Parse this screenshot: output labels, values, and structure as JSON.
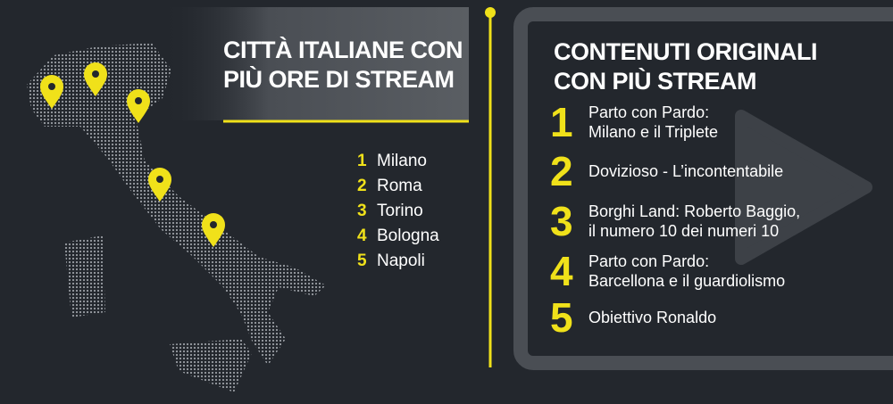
{
  "left": {
    "title_lines": [
      "CITTÀ ITALIANE CON",
      "PIÙ ORE DI STREAM"
    ],
    "items": [
      {
        "rank": 1,
        "name": "Milano"
      },
      {
        "rank": 2,
        "name": "Roma"
      },
      {
        "rank": 3,
        "name": "Torino"
      },
      {
        "rank": 4,
        "name": "Bologna"
      },
      {
        "rank": 5,
        "name": "Napoli"
      }
    ]
  },
  "right": {
    "title_lines": [
      "CONTENUTI ORIGINALI",
      "CON PIÙ STREAM"
    ],
    "items": [
      {
        "rank": 1,
        "lines": [
          "Parto con Pardo:",
          "Milano e il Triplete"
        ]
      },
      {
        "rank": 2,
        "lines": [
          "Dovizioso - L’incontentabile"
        ]
      },
      {
        "rank": 3,
        "lines": [
          "Borghi Land: Roberto Baggio,",
          "il numero 10 dei numeri 10"
        ]
      },
      {
        "rank": 4,
        "lines": [
          "Parto con Pardo:",
          "Barcellona e il guardiolismo"
        ]
      },
      {
        "rank": 5,
        "lines": [
          "Obiettivo Ronaldo"
        ]
      }
    ]
  }
}
